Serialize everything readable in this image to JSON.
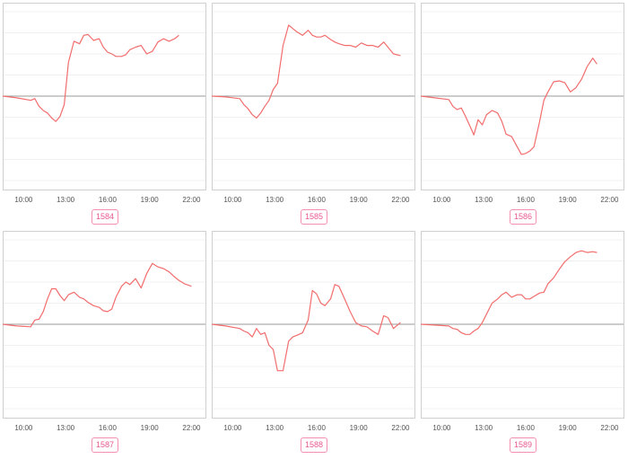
{
  "colors": {
    "line": "#f26d6d",
    "badge_border": "#f48fb1",
    "badge_text": "#e8588f",
    "frame": "#cfcfcf",
    "baseline": "#9a9a9a"
  },
  "chart_data": [
    {
      "type": "line",
      "title": "1584",
      "xticks": [
        "10:00",
        "13:00",
        "16:00",
        "19:00",
        "22:00"
      ],
      "xlim": [
        8.5,
        23.0
      ],
      "ylim": [
        -1,
        1
      ],
      "grid": true,
      "series": [
        {
          "x": [
            8.5,
            9.5,
            10.5,
            10.8,
            11.1,
            11.4,
            11.7,
            12.0,
            12.3,
            12.6,
            12.9,
            13.2,
            13.6,
            14.0,
            14.3,
            14.6,
            15.0,
            15.4,
            15.7,
            16.0,
            16.3,
            16.6,
            17.0,
            17.3,
            17.6,
            18.0,
            18.4,
            18.8,
            19.2,
            19.6,
            20.0,
            20.4,
            20.8,
            21.1
          ],
          "y": [
            0,
            -0.02,
            -0.05,
            -0.03,
            -0.12,
            -0.17,
            -0.2,
            -0.26,
            -0.3,
            -0.24,
            -0.1,
            0.4,
            0.65,
            0.62,
            0.72,
            0.73,
            0.66,
            0.68,
            0.58,
            0.52,
            0.5,
            0.47,
            0.47,
            0.49,
            0.55,
            0.58,
            0.6,
            0.5,
            0.53,
            0.64,
            0.68,
            0.65,
            0.68,
            0.72
          ]
        }
      ]
    },
    {
      "type": "line",
      "title": "1585",
      "xticks": [
        "10:00",
        "13:00",
        "16:00",
        "19:00",
        "22:00"
      ],
      "xlim": [
        8.5,
        23.0
      ],
      "ylim": [
        -1,
        1
      ],
      "grid": true,
      "series": [
        {
          "x": [
            8.5,
            9.5,
            10.5,
            10.8,
            11.1,
            11.4,
            11.7,
            12.0,
            12.3,
            12.6,
            12.9,
            13.2,
            13.6,
            14.0,
            14.3,
            14.6,
            15.0,
            15.4,
            15.7,
            16.0,
            16.3,
            16.6,
            17.0,
            17.3,
            17.6,
            18.0,
            18.4,
            18.8,
            19.2,
            19.6,
            20.0,
            20.4,
            20.8,
            21.1,
            21.5,
            22.0
          ],
          "y": [
            0,
            -0.01,
            -0.03,
            -0.1,
            -0.15,
            -0.22,
            -0.26,
            -0.2,
            -0.12,
            -0.05,
            0.08,
            0.15,
            0.6,
            0.84,
            0.8,
            0.76,
            0.72,
            0.78,
            0.72,
            0.7,
            0.7,
            0.72,
            0.67,
            0.64,
            0.62,
            0.6,
            0.6,
            0.58,
            0.63,
            0.6,
            0.6,
            0.58,
            0.64,
            0.58,
            0.5,
            0.48
          ]
        }
      ]
    },
    {
      "type": "line",
      "title": "1586",
      "xticks": [
        "10:00",
        "13:00",
        "16:00",
        "19:00",
        "22:00"
      ],
      "xlim": [
        8.5,
        23.0
      ],
      "ylim": [
        -1,
        1
      ],
      "grid": true,
      "series": [
        {
          "x": [
            8.5,
            9.5,
            10.5,
            10.8,
            11.1,
            11.4,
            11.7,
            12.0,
            12.3,
            12.6,
            12.9,
            13.2,
            13.6,
            14.0,
            14.3,
            14.6,
            15.0,
            15.4,
            15.7,
            16.0,
            16.3,
            16.6,
            17.0,
            17.3,
            17.6,
            18.0,
            18.4,
            18.8,
            19.2,
            19.6,
            20.0,
            20.4,
            20.8,
            21.1
          ],
          "y": [
            0,
            -0.02,
            -0.04,
            -0.12,
            -0.16,
            -0.14,
            -0.24,
            -0.35,
            -0.46,
            -0.28,
            -0.34,
            -0.22,
            -0.17,
            -0.2,
            -0.3,
            -0.45,
            -0.48,
            -0.6,
            -0.69,
            -0.68,
            -0.65,
            -0.6,
            -0.3,
            -0.05,
            0.05,
            0.17,
            0.18,
            0.16,
            0.05,
            0.1,
            0.2,
            0.35,
            0.45,
            0.38
          ]
        }
      ]
    },
    {
      "type": "line",
      "title": "1587",
      "xticks": [
        "10:00",
        "13:00",
        "16:00",
        "19:00",
        "22:00"
      ],
      "xlim": [
        8.5,
        23.0
      ],
      "ylim": [
        -1,
        1
      ],
      "grid": true,
      "series": [
        {
          "x": [
            8.5,
            9.5,
            10.5,
            10.8,
            11.1,
            11.4,
            11.7,
            12.0,
            12.3,
            12.6,
            12.9,
            13.2,
            13.6,
            14.0,
            14.3,
            14.6,
            15.0,
            15.4,
            15.7,
            16.0,
            16.3,
            16.6,
            17.0,
            17.3,
            17.6,
            18.0,
            18.4,
            18.8,
            19.2,
            19.6,
            20.0,
            20.4,
            20.8,
            21.1,
            21.5,
            22.0
          ],
          "y": [
            0,
            -0.02,
            -0.03,
            0.05,
            0.06,
            0.15,
            0.3,
            0.42,
            0.42,
            0.34,
            0.28,
            0.35,
            0.38,
            0.32,
            0.3,
            0.26,
            0.22,
            0.2,
            0.16,
            0.15,
            0.18,
            0.32,
            0.45,
            0.5,
            0.47,
            0.54,
            0.43,
            0.6,
            0.72,
            0.68,
            0.66,
            0.62,
            0.56,
            0.52,
            0.48,
            0.45
          ]
        }
      ]
    },
    {
      "type": "line",
      "title": "1588",
      "xticks": [
        "10:00",
        "13:00",
        "16:00",
        "19:00",
        "22:00"
      ],
      "xlim": [
        8.5,
        23.0
      ],
      "ylim": [
        -1,
        1
      ],
      "grid": true,
      "series": [
        {
          "x": [
            8.5,
            9.5,
            10.5,
            10.8,
            11.1,
            11.4,
            11.7,
            12.0,
            12.3,
            12.6,
            12.9,
            13.2,
            13.6,
            14.0,
            14.3,
            14.6,
            15.0,
            15.4,
            15.7,
            16.0,
            16.3,
            16.6,
            17.0,
            17.3,
            17.6,
            18.0,
            18.4,
            18.8,
            19.2,
            19.6,
            20.0,
            20.4,
            20.8,
            21.1,
            21.5,
            22.0
          ],
          "y": [
            0,
            -0.02,
            -0.05,
            -0.08,
            -0.1,
            -0.15,
            -0.05,
            -0.12,
            -0.1,
            -0.25,
            -0.3,
            -0.55,
            -0.55,
            -0.2,
            -0.15,
            -0.13,
            -0.1,
            0.05,
            0.4,
            0.36,
            0.25,
            0.22,
            0.3,
            0.47,
            0.45,
            0.3,
            0.15,
            0.02,
            -0.02,
            -0.03,
            -0.08,
            -0.12,
            0.1,
            0.08,
            -0.05,
            0.02
          ]
        }
      ]
    },
    {
      "type": "line",
      "title": "1589",
      "xticks": [
        "10:00",
        "13:00",
        "16:00",
        "19:00",
        "22:00"
      ],
      "xlim": [
        8.5,
        23.0
      ],
      "ylim": [
        -1,
        1
      ],
      "grid": true,
      "series": [
        {
          "x": [
            8.5,
            9.5,
            10.5,
            10.8,
            11.1,
            11.4,
            11.7,
            12.0,
            12.3,
            12.6,
            12.9,
            13.2,
            13.6,
            14.0,
            14.3,
            14.6,
            15.0,
            15.4,
            15.7,
            16.0,
            16.3,
            16.6,
            17.0,
            17.3,
            17.6,
            18.0,
            18.4,
            18.8,
            19.2,
            19.6,
            20.0,
            20.4,
            20.8,
            21.1
          ],
          "y": [
            0,
            -0.01,
            -0.02,
            -0.05,
            -0.06,
            -0.1,
            -0.12,
            -0.12,
            -0.08,
            -0.05,
            0.02,
            0.12,
            0.25,
            0.3,
            0.35,
            0.38,
            0.32,
            0.35,
            0.35,
            0.3,
            0.3,
            0.33,
            0.37,
            0.38,
            0.48,
            0.55,
            0.65,
            0.74,
            0.8,
            0.85,
            0.87,
            0.85,
            0.86,
            0.85
          ]
        }
      ]
    }
  ]
}
